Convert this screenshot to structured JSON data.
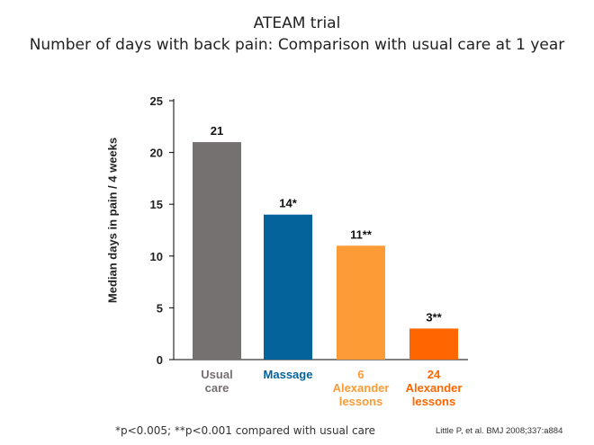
{
  "header": {
    "title": "ATEAM trial",
    "subtitle": "Number of days with back pain: Comparison with usual care at 1 year"
  },
  "footer": {
    "footnote": "*p<0.005; **p<0.001 compared with usual care",
    "citation": "Little P, et al. BMJ 2008;337:a884"
  },
  "chart_data": {
    "type": "bar",
    "title": "ATEAM trial",
    "subtitle": "Number of days with back pain: Comparison with usual care at 1 year",
    "xlabel": "",
    "ylabel": "Median days in pain / 4 weeks",
    "ylim": [
      0,
      25
    ],
    "yticks": [
      0,
      5,
      10,
      15,
      20,
      25
    ],
    "grid": false,
    "categories": [
      [
        "Usual",
        "care"
      ],
      [
        "Massage"
      ],
      [
        "6",
        "Alexander",
        "lessons"
      ],
      [
        "24",
        "Alexander",
        "lessons"
      ]
    ],
    "values": [
      21,
      14,
      11,
      3
    ],
    "data_labels": [
      "21",
      "14*",
      "11**",
      "3**"
    ],
    "colors": [
      "#767171",
      "#05639b",
      "#fd9b37",
      "#ff6600"
    ]
  }
}
